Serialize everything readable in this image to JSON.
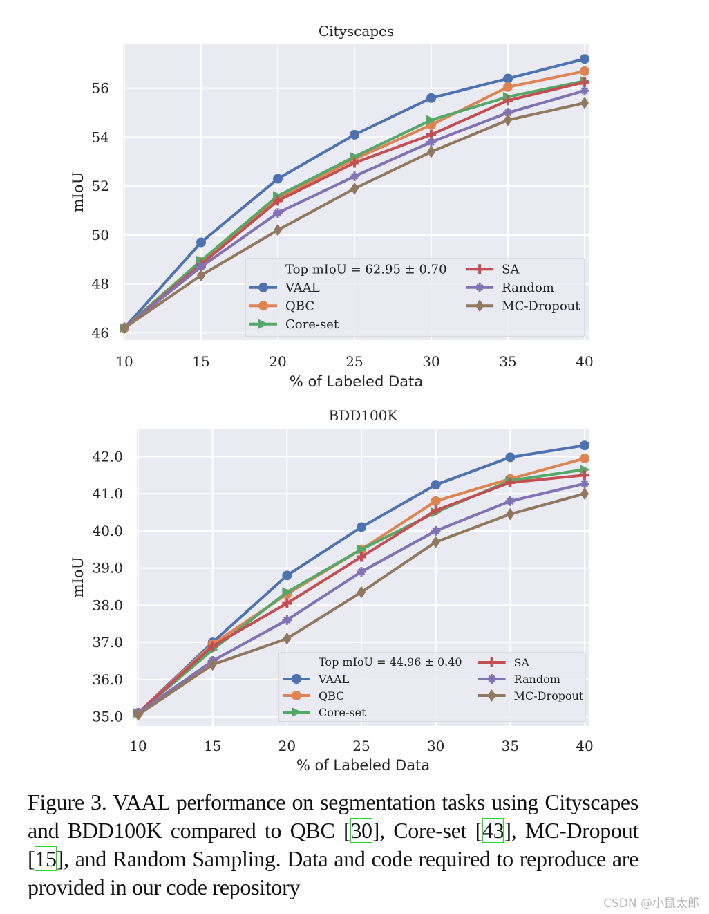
{
  "chart_data": [
    {
      "type": "line",
      "title": "Cityscapes",
      "xlabel": "% of Labeled Data",
      "ylabel": "mIoU",
      "x": [
        10,
        15,
        20,
        25,
        30,
        35,
        40
      ],
      "xticks": [
        "10",
        "15",
        "20",
        "25",
        "30",
        "35",
        "40"
      ],
      "yticks": [
        "46",
        "48",
        "50",
        "52",
        "54",
        "56"
      ],
      "ytick_values": [
        46,
        48,
        50,
        52,
        54,
        56
      ],
      "xlim": [
        10,
        40
      ],
      "ylim": [
        45.7,
        57.8
      ],
      "grid": true,
      "legend_title": "Top mIoU = 62.95 ± 0.70",
      "legend_placement": "lower-right",
      "series": [
        {
          "name": "VAAL",
          "color": "#4c72b0",
          "marker": "circle",
          "values": [
            46.2,
            49.7,
            52.3,
            54.1,
            55.6,
            56.4,
            57.2
          ]
        },
        {
          "name": "QBC",
          "color": "#dd8452",
          "marker": "octagon",
          "values": [
            46.2,
            48.9,
            51.5,
            53.1,
            54.5,
            56.05,
            56.7
          ]
        },
        {
          "name": "Core-set",
          "color": "#55a868",
          "marker": "triangle-right",
          "values": [
            46.2,
            48.95,
            51.6,
            53.2,
            54.7,
            55.65,
            56.3
          ]
        },
        {
          "name": "SA",
          "color": "#c44e52",
          "marker": "plus",
          "values": [
            46.2,
            48.8,
            51.4,
            52.95,
            54.1,
            55.5,
            56.25
          ]
        },
        {
          "name": "Random",
          "color": "#8172b3",
          "marker": "star",
          "values": [
            46.2,
            48.7,
            50.9,
            52.4,
            53.8,
            55.0,
            55.9
          ]
        },
        {
          "name": "MC-Dropout",
          "color": "#937860",
          "marker": "diamond",
          "values": [
            46.2,
            48.35,
            50.2,
            51.9,
            53.4,
            54.7,
            55.4
          ]
        }
      ]
    },
    {
      "type": "line",
      "title": "BDD100K",
      "xlabel": "% of Labeled Data",
      "ylabel": "mIoU",
      "x": [
        10,
        15,
        20,
        25,
        30,
        35,
        40
      ],
      "xticks": [
        "10",
        "15",
        "20",
        "25",
        "30",
        "35",
        "40"
      ],
      "yticks": [
        "35.0",
        "36.0",
        "37.0",
        "38.0",
        "39.0",
        "40.0",
        "41.0",
        "42.0"
      ],
      "ytick_values": [
        35,
        36,
        37,
        38,
        39,
        40,
        41,
        42
      ],
      "xlim": [
        10,
        40
      ],
      "ylim": [
        34.75,
        42.75
      ],
      "grid": true,
      "legend_title": "Top mIoU = 44.96 ± 0.40",
      "legend_placement": "lower-right",
      "series": [
        {
          "name": "VAAL",
          "color": "#4c72b0",
          "marker": "circle",
          "values": [
            35.1,
            37.0,
            38.8,
            40.1,
            41.24,
            41.98,
            42.3
          ]
        },
        {
          "name": "QBC",
          "color": "#dd8452",
          "marker": "octagon",
          "values": [
            35.1,
            36.95,
            38.3,
            39.5,
            40.8,
            41.4,
            41.95
          ]
        },
        {
          "name": "Core-set",
          "color": "#55a868",
          "marker": "triangle-right",
          "values": [
            35.1,
            36.8,
            38.35,
            39.5,
            40.5,
            41.35,
            41.65
          ]
        },
        {
          "name": "SA",
          "color": "#c44e52",
          "marker": "plus",
          "values": [
            35.1,
            36.9,
            38.05,
            39.3,
            40.55,
            41.3,
            41.5
          ]
        },
        {
          "name": "Random",
          "color": "#8172b3",
          "marker": "star",
          "values": [
            35.1,
            36.5,
            37.6,
            38.9,
            40.0,
            40.8,
            41.27
          ]
        },
        {
          "name": "MC-Dropout",
          "color": "#937860",
          "marker": "diamond",
          "values": [
            35.05,
            36.4,
            37.1,
            38.35,
            39.7,
            40.45,
            41.0
          ]
        }
      ]
    }
  ],
  "caption": {
    "part1": "Figure 3. VAAL performance on segmentation tasks using Cityscapes and BDD100K compared to QBC [",
    "cite1": "30",
    "part2": "], Core-set [",
    "cite2": "43",
    "part3": "], MC-Dropout [",
    "cite3": "15",
    "part4": "], and Random Sampling. Data and code required to reproduce are provided in our code repository"
  },
  "watermark": "CSDN @小鼠太郎"
}
